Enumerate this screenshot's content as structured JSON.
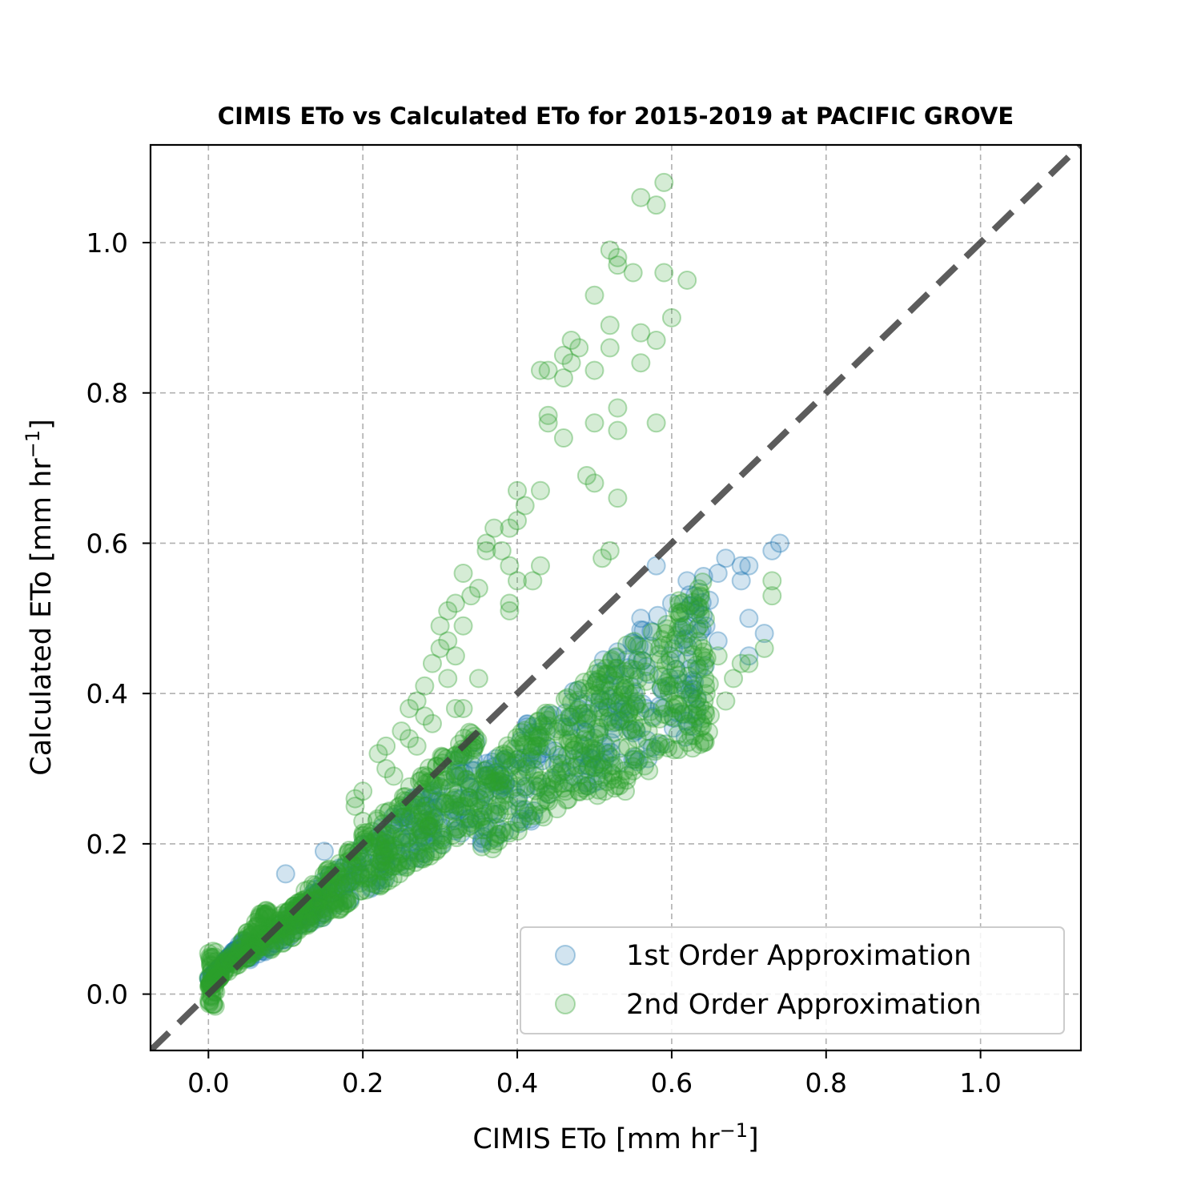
{
  "chart_data": {
    "type": "scatter",
    "title": "CIMIS ETo vs Calculated ETo for 2015-2019 at PACIFIC GROVE",
    "xlabel": "CIMIS ETo [mm hr",
    "ylabel": "Calculated ETo [mm hr",
    "unit_exponent": "−1",
    "unit_close": "]",
    "xlim": [
      -0.075,
      1.13
    ],
    "ylim": [
      -0.075,
      1.13
    ],
    "xticks": [
      "0.0",
      "0.2",
      "0.4",
      "0.6",
      "0.8",
      "1.0"
    ],
    "yticks": [
      "0.0",
      "0.2",
      "0.4",
      "0.6",
      "0.8",
      "1.0"
    ],
    "grid": true,
    "legend_position": "lower right",
    "reference_line": {
      "style": "dashed",
      "slope": 1,
      "intercept": 0,
      "color": "#404040"
    },
    "series": [
      {
        "name": "1st Order Approximation",
        "color": "#1f77b4",
        "alpha": 0.2,
        "bands": [
          {
            "x": [
              0.0,
              0.05
            ],
            "y_min_slope": 0.85,
            "y_max_slope": 1.15,
            "y_offset": 0.02,
            "n": 80
          },
          {
            "x": [
              0.05,
              0.35
            ],
            "y_min_slope": 0.62,
            "y_max_slope": 0.95,
            "y_offset": 0.01,
            "n": 220
          },
          {
            "x": [
              0.35,
              0.65
            ],
            "y_min_slope": 0.55,
            "y_max_slope": 0.88,
            "y_offset": 0.0,
            "n": 220
          }
        ],
        "points": [
          [
            0.58,
            0.57
          ],
          [
            0.66,
            0.56
          ],
          [
            0.67,
            0.58
          ],
          [
            0.69,
            0.57
          ],
          [
            0.7,
            0.57
          ],
          [
            0.69,
            0.55
          ],
          [
            0.73,
            0.59
          ],
          [
            0.74,
            0.6
          ],
          [
            0.7,
            0.5
          ],
          [
            0.72,
            0.48
          ],
          [
            0.7,
            0.45
          ],
          [
            0.66,
            0.47
          ],
          [
            0.63,
            0.53
          ],
          [
            0.62,
            0.55
          ],
          [
            0.6,
            0.52
          ],
          [
            0.56,
            0.5
          ],
          [
            0.15,
            0.19
          ],
          [
            0.1,
            0.16
          ]
        ]
      },
      {
        "name": "2nd Order Approximation",
        "color": "#2ca02c",
        "alpha": 0.2,
        "bands": [
          {
            "x": [
              0.0,
              0.01
            ],
            "y_min_slope": 0.0,
            "y_max_slope": 0.0,
            "y_offset": -0.02,
            "y_span": 0.08,
            "n": 40
          },
          {
            "x": [
              0.0,
              0.08
            ],
            "y_min_slope": 0.75,
            "y_max_slope": 1.45,
            "y_offset": 0.01,
            "n": 160
          },
          {
            "x": [
              0.08,
              0.35
            ],
            "y_min_slope": 0.6,
            "y_max_slope": 1.02,
            "y_offset": 0.01,
            "n": 420
          },
          {
            "x": [
              0.35,
              0.65
            ],
            "y_min_slope": 0.52,
            "y_max_slope": 0.86,
            "y_offset": 0.0,
            "n": 420
          }
        ],
        "points": [
          [
            0.59,
            1.08
          ],
          [
            0.56,
            1.06
          ],
          [
            0.58,
            1.05
          ],
          [
            0.52,
            0.99
          ],
          [
            0.53,
            0.98
          ],
          [
            0.53,
            0.97
          ],
          [
            0.55,
            0.96
          ],
          [
            0.59,
            0.96
          ],
          [
            0.62,
            0.95
          ],
          [
            0.5,
            0.93
          ],
          [
            0.52,
            0.89
          ],
          [
            0.56,
            0.88
          ],
          [
            0.58,
            0.87
          ],
          [
            0.6,
            0.9
          ],
          [
            0.47,
            0.87
          ],
          [
            0.48,
            0.86
          ],
          [
            0.46,
            0.85
          ],
          [
            0.47,
            0.84
          ],
          [
            0.43,
            0.83
          ],
          [
            0.44,
            0.83
          ],
          [
            0.5,
            0.83
          ],
          [
            0.46,
            0.82
          ],
          [
            0.56,
            0.84
          ],
          [
            0.52,
            0.86
          ],
          [
            0.44,
            0.77
          ],
          [
            0.44,
            0.76
          ],
          [
            0.46,
            0.74
          ],
          [
            0.5,
            0.76
          ],
          [
            0.53,
            0.78
          ],
          [
            0.53,
            0.75
          ],
          [
            0.58,
            0.76
          ],
          [
            0.49,
            0.69
          ],
          [
            0.5,
            0.68
          ],
          [
            0.53,
            0.66
          ],
          [
            0.4,
            0.67
          ],
          [
            0.43,
            0.67
          ],
          [
            0.41,
            0.65
          ],
          [
            0.4,
            0.63
          ],
          [
            0.39,
            0.62
          ],
          [
            0.37,
            0.62
          ],
          [
            0.36,
            0.6
          ],
          [
            0.36,
            0.59
          ],
          [
            0.38,
            0.59
          ],
          [
            0.39,
            0.57
          ],
          [
            0.43,
            0.57
          ],
          [
            0.42,
            0.55
          ],
          [
            0.4,
            0.55
          ],
          [
            0.33,
            0.56
          ],
          [
            0.35,
            0.54
          ],
          [
            0.34,
            0.53
          ],
          [
            0.32,
            0.52
          ],
          [
            0.39,
            0.52
          ],
          [
            0.39,
            0.51
          ],
          [
            0.31,
            0.51
          ],
          [
            0.3,
            0.49
          ],
          [
            0.33,
            0.49
          ],
          [
            0.31,
            0.47
          ],
          [
            0.3,
            0.46
          ],
          [
            0.29,
            0.44
          ],
          [
            0.32,
            0.45
          ],
          [
            0.31,
            0.42
          ],
          [
            0.35,
            0.42
          ],
          [
            0.28,
            0.41
          ],
          [
            0.27,
            0.39
          ],
          [
            0.26,
            0.38
          ],
          [
            0.28,
            0.37
          ],
          [
            0.29,
            0.36
          ],
          [
            0.32,
            0.38
          ],
          [
            0.33,
            0.38
          ],
          [
            0.25,
            0.35
          ],
          [
            0.26,
            0.34
          ],
          [
            0.27,
            0.33
          ],
          [
            0.23,
            0.33
          ],
          [
            0.22,
            0.32
          ],
          [
            0.23,
            0.3
          ],
          [
            0.24,
            0.29
          ],
          [
            0.2,
            0.27
          ],
          [
            0.19,
            0.26
          ],
          [
            0.19,
            0.25
          ],
          [
            0.2,
            0.23
          ],
          [
            0.52,
            0.59
          ],
          [
            0.51,
            0.58
          ],
          [
            0.73,
            0.55
          ],
          [
            0.73,
            0.53
          ],
          [
            0.72,
            0.46
          ],
          [
            0.7,
            0.44
          ],
          [
            0.69,
            0.44
          ],
          [
            0.67,
            0.39
          ],
          [
            0.68,
            0.42
          ],
          [
            0.66,
            0.45
          ],
          [
            0.54,
            0.27
          ],
          [
            0.48,
            0.27
          ]
        ]
      }
    ]
  }
}
